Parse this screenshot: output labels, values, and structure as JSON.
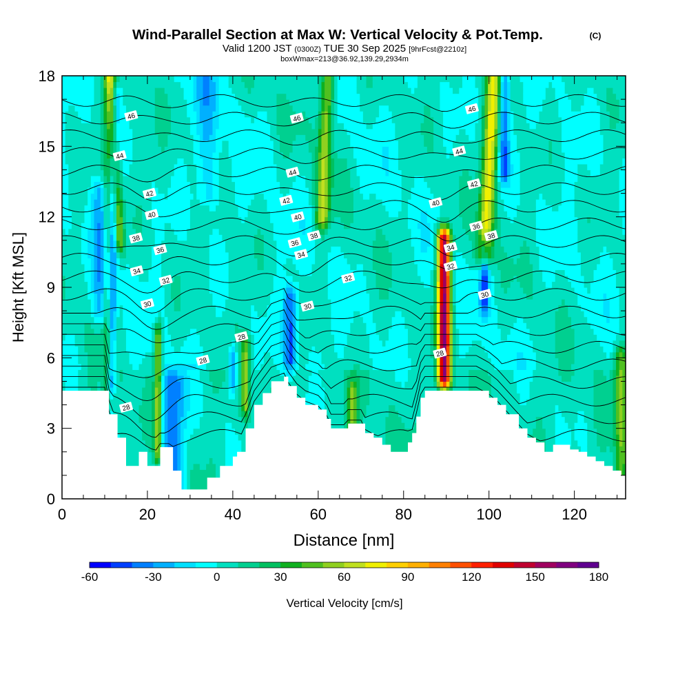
{
  "chart_data": {
    "type": "heatmap",
    "title": "Wind-Parallel Section at Max W: Vertical Velocity & Pot.Temp.",
    "copyright": "(C)",
    "subtitle_valid": "Valid 1200 JST",
    "subtitle_utc": "(0300Z)",
    "subtitle_date": "TUE 30 Sep 2025",
    "subtitle_fcst": "[9hrFcst@2210z]",
    "subtitle_box": "boxWmax=213@36.92,139.29,2934m",
    "xlabel": "Distance [nm]",
    "ylabel": "Height [Kft MSL]",
    "xlim": [
      0,
      132
    ],
    "ylim": [
      0,
      18
    ],
    "xticks": [
      "0",
      "20",
      "40",
      "60",
      "80",
      "100",
      "120"
    ],
    "yticks": [
      "0",
      "3",
      "6",
      "9",
      "12",
      "15",
      "18"
    ],
    "colorbar": {
      "label": "Vertical Velocity [cm/s]",
      "ticks": [
        "-60",
        "-30",
        "0",
        "30",
        "60",
        "90",
        "120",
        "150",
        "180"
      ],
      "min": -60,
      "max": 180,
      "step": 10,
      "colors": [
        "#0000ff",
        "#0040ff",
        "#0080ff",
        "#00b0ff",
        "#00e0ff",
        "#00ffff",
        "#00e0c0",
        "#00d090",
        "#00c060",
        "#10b020",
        "#50c020",
        "#90d020",
        "#c0e020",
        "#f0f000",
        "#ffd000",
        "#ffb000",
        "#ff8000",
        "#ff5000",
        "#ff2000",
        "#e00000",
        "#c00030",
        "#a00060",
        "#800080",
        "#600090"
      ]
    },
    "terrain": [
      [
        0,
        4.6
      ],
      [
        10,
        4.6
      ],
      [
        11,
        3.6
      ],
      [
        13,
        2.6
      ],
      [
        15,
        1.4
      ],
      [
        17,
        1.4
      ],
      [
        18,
        2
      ],
      [
        19,
        2
      ],
      [
        20,
        1.4
      ],
      [
        22,
        1.4
      ],
      [
        23,
        2.2
      ],
      [
        25,
        2.2
      ],
      [
        26,
        1.2
      ],
      [
        28,
        0.4
      ],
      [
        32,
        0.4
      ],
      [
        34,
        0.9
      ],
      [
        37,
        1.4
      ],
      [
        40,
        1.8
      ],
      [
        41,
        2
      ],
      [
        43,
        3
      ],
      [
        45,
        4
      ],
      [
        47,
        4.5
      ],
      [
        49,
        5
      ],
      [
        52,
        5.2
      ],
      [
        53,
        4.8
      ],
      [
        55,
        4.3
      ],
      [
        57,
        4
      ],
      [
        60,
        3.8
      ],
      [
        62,
        3.4
      ],
      [
        63,
        3
      ],
      [
        66,
        3
      ],
      [
        67,
        3.2
      ],
      [
        70,
        3.2
      ],
      [
        71,
        2.8
      ],
      [
        73,
        2.6
      ],
      [
        75,
        2.3
      ],
      [
        77,
        2
      ],
      [
        80,
        2
      ],
      [
        81,
        2.4
      ],
      [
        82,
        2.8
      ],
      [
        83,
        3.5
      ],
      [
        84,
        4.3
      ],
      [
        85,
        4.6
      ],
      [
        97,
        4.6
      ],
      [
        100,
        4.3
      ],
      [
        102,
        4
      ],
      [
        104,
        3.6
      ],
      [
        107,
        3
      ],
      [
        109,
        2.6
      ],
      [
        111,
        2.4
      ],
      [
        113,
        2
      ],
      [
        114,
        2
      ],
      [
        115,
        2.3
      ],
      [
        118,
        2.3
      ],
      [
        119,
        2.1
      ],
      [
        121,
        2
      ],
      [
        123,
        1.8
      ],
      [
        125,
        1.6
      ],
      [
        127,
        1.4
      ],
      [
        129,
        1.2
      ],
      [
        131,
        1
      ],
      [
        132,
        1
      ]
    ],
    "updrafts": [
      {
        "x": 10.5,
        "z0": 4.5,
        "z1": 18,
        "sx": 0.9,
        "peak": 25,
        "tilt": 0
      },
      {
        "x": 13.5,
        "z0": 11,
        "z1": 18,
        "sx": 1.2,
        "peak": 55,
        "tilt": -0.3
      },
      {
        "x": 22.5,
        "z0": 2,
        "z1": 7,
        "sx": 0.9,
        "peak": 55,
        "tilt": 0
      },
      {
        "x": 43,
        "z0": 4,
        "z1": 6.5,
        "sx": 1,
        "peak": 45,
        "tilt": 0
      },
      {
        "x": 61,
        "z0": 12,
        "z1": 18,
        "sx": 1.6,
        "peak": 58,
        "tilt": 0.2
      },
      {
        "x": 68,
        "z0": 3,
        "z1": 4.5,
        "sx": 1.2,
        "peak": 45,
        "tilt": 0
      },
      {
        "x": 89.5,
        "z0": 5.2,
        "z1": 11,
        "sx": 1.5,
        "peak": 155,
        "tilt": 0
      },
      {
        "x": 99,
        "z0": 10.5,
        "z1": 18,
        "sx": 1.8,
        "peak": 70,
        "tilt": 0.3
      },
      {
        "x": 131,
        "z0": 1,
        "z1": 6,
        "sx": 1.5,
        "peak": 45,
        "tilt": 0
      }
    ],
    "downdrafts": [
      {
        "x": 11.5,
        "z0": 5,
        "z1": 17,
        "sx": 1,
        "peak": -35,
        "tilt": 0.1
      },
      {
        "x": 26,
        "z0": 0.5,
        "z1": 5,
        "sx": 3,
        "peak": -40,
        "tilt": 0
      },
      {
        "x": 53.5,
        "z0": 6,
        "z1": 8.5,
        "sx": 1.5,
        "peak": -45,
        "tilt": 0
      },
      {
        "x": 40,
        "z0": 5,
        "z1": 6,
        "sx": 1,
        "peak": -40,
        "tilt": 0
      },
      {
        "x": 103.5,
        "z0": 14,
        "z1": 18,
        "sx": 1.2,
        "peak": -40,
        "tilt": 0
      },
      {
        "x": 99,
        "z0": 8.5,
        "z1": 10.5,
        "sx": 1,
        "peak": -45,
        "tilt": 0
      },
      {
        "x": 9,
        "z0": 8,
        "z1": 13,
        "sx": 2,
        "peak": -25,
        "tilt": 0
      },
      {
        "x": 34,
        "z0": 13,
        "z1": 18,
        "sx": 3,
        "peak": -20,
        "tilt": 0
      }
    ],
    "theta_levels": [
      28,
      29,
      30,
      31,
      32,
      33,
      34,
      35,
      36,
      37,
      38,
      39,
      40,
      41,
      42,
      43,
      44,
      45,
      46,
      47
    ],
    "theta_labels": [
      {
        "text": "28",
        "x": 15,
        "z": 3.9
      },
      {
        "text": "28",
        "x": 42,
        "z": 6.9
      },
      {
        "text": "28",
        "x": 88.5,
        "z": 6.2
      },
      {
        "text": "28",
        "x": 33,
        "z": 5.9
      },
      {
        "text": "30",
        "x": 20,
        "z": 8.3
      },
      {
        "text": "30",
        "x": 57.5,
        "z": 8.2
      },
      {
        "text": "30",
        "x": 99,
        "z": 8.7
      },
      {
        "text": "32",
        "x": 24.3,
        "z": 9.3
      },
      {
        "text": "32",
        "x": 67,
        "z": 9.4
      },
      {
        "text": "32",
        "x": 91,
        "z": 9.9
      },
      {
        "text": "34",
        "x": 17.5,
        "z": 9.7
      },
      {
        "text": "34",
        "x": 56,
        "z": 10.4
      },
      {
        "text": "34",
        "x": 91,
        "z": 10.7
      },
      {
        "text": "36",
        "x": 23,
        "z": 10.6
      },
      {
        "text": "36",
        "x": 54.5,
        "z": 10.9
      },
      {
        "text": "36",
        "x": 97,
        "z": 11.6
      },
      {
        "text": "38",
        "x": 17.3,
        "z": 11.1
      },
      {
        "text": "38",
        "x": 59,
        "z": 11.2
      },
      {
        "text": "38",
        "x": 100.5,
        "z": 11.2
      },
      {
        "text": "40",
        "x": 21,
        "z": 12.1
      },
      {
        "text": "40",
        "x": 55.2,
        "z": 12
      },
      {
        "text": "40",
        "x": 87.5,
        "z": 12.6
      },
      {
        "text": "42",
        "x": 20.5,
        "z": 13
      },
      {
        "text": "42",
        "x": 52.5,
        "z": 12.7
      },
      {
        "text": "42",
        "x": 96.5,
        "z": 13.4
      },
      {
        "text": "44",
        "x": 13.5,
        "z": 14.6
      },
      {
        "text": "44",
        "x": 54,
        "z": 13.9
      },
      {
        "text": "44",
        "x": 93,
        "z": 14.8
      },
      {
        "text": "46",
        "x": 16.2,
        "z": 16.3
      },
      {
        "text": "46",
        "x": 55,
        "z": 16.2
      },
      {
        "text": "46",
        "x": 96,
        "z": 16.6
      }
    ]
  }
}
